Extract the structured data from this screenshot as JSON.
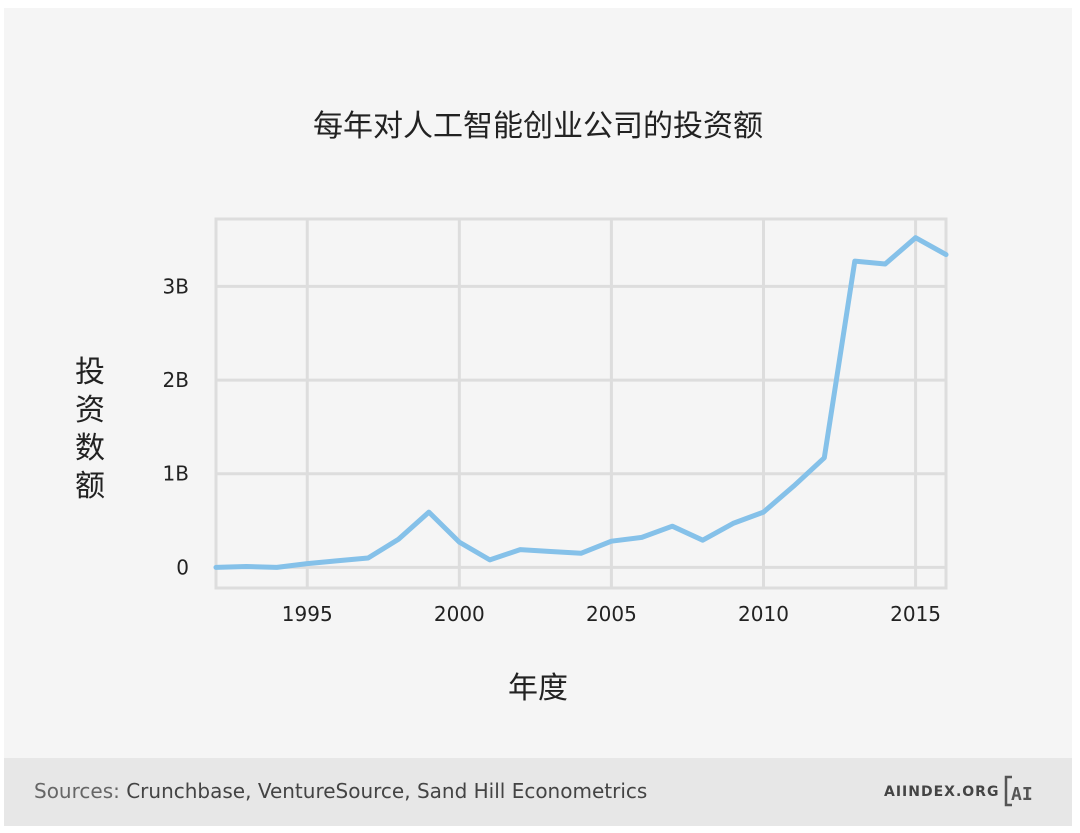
{
  "footer": {
    "source_label": "Sources:",
    "source_names": "Crunchbase, VentureSource, Sand Hill Econometrics",
    "brand": "AIINDEX.ORG",
    "logo_text": "AI"
  },
  "colors": {
    "background": "#f5f5f5",
    "footer": "#e7e7e7",
    "series": "#85c1e9",
    "grid": "#dddddd",
    "text": "#222222"
  },
  "chart_data": {
    "type": "line",
    "title": "每年对人工智能创业公司的投资额",
    "xlabel": "年度",
    "ylabel": "投资数额",
    "x_ticks": [
      1995,
      2000,
      2005,
      2010,
      2015
    ],
    "y_ticks": [
      {
        "value": 0,
        "label": "0"
      },
      {
        "value": 1000000000,
        "label": "1B"
      },
      {
        "value": 2000000000,
        "label": "2B"
      },
      {
        "value": 3000000000,
        "label": "3B"
      }
    ],
    "xlim": [
      1992,
      2016
    ],
    "ylim": [
      -220000000,
      3720000000
    ],
    "grid": true,
    "legend": "none",
    "series": [
      {
        "x": [
          1992,
          1993,
          1994,
          1995,
          1996,
          1997,
          1998,
          1999,
          2000,
          2001,
          2002,
          2003,
          2004,
          2005,
          2006,
          2007,
          2008,
          2009,
          2010,
          2011,
          2012,
          2013,
          2014,
          2015,
          2016
        ],
        "values": [
          0,
          10000000,
          0,
          40000000,
          70000000,
          100000000,
          300000000,
          590000000,
          270000000,
          80000000,
          190000000,
          170000000,
          150000000,
          280000000,
          320000000,
          440000000,
          290000000,
          470000000,
          590000000,
          870000000,
          1170000000,
          3270000000,
          3240000000,
          3520000000,
          3340000000
        ]
      }
    ]
  }
}
